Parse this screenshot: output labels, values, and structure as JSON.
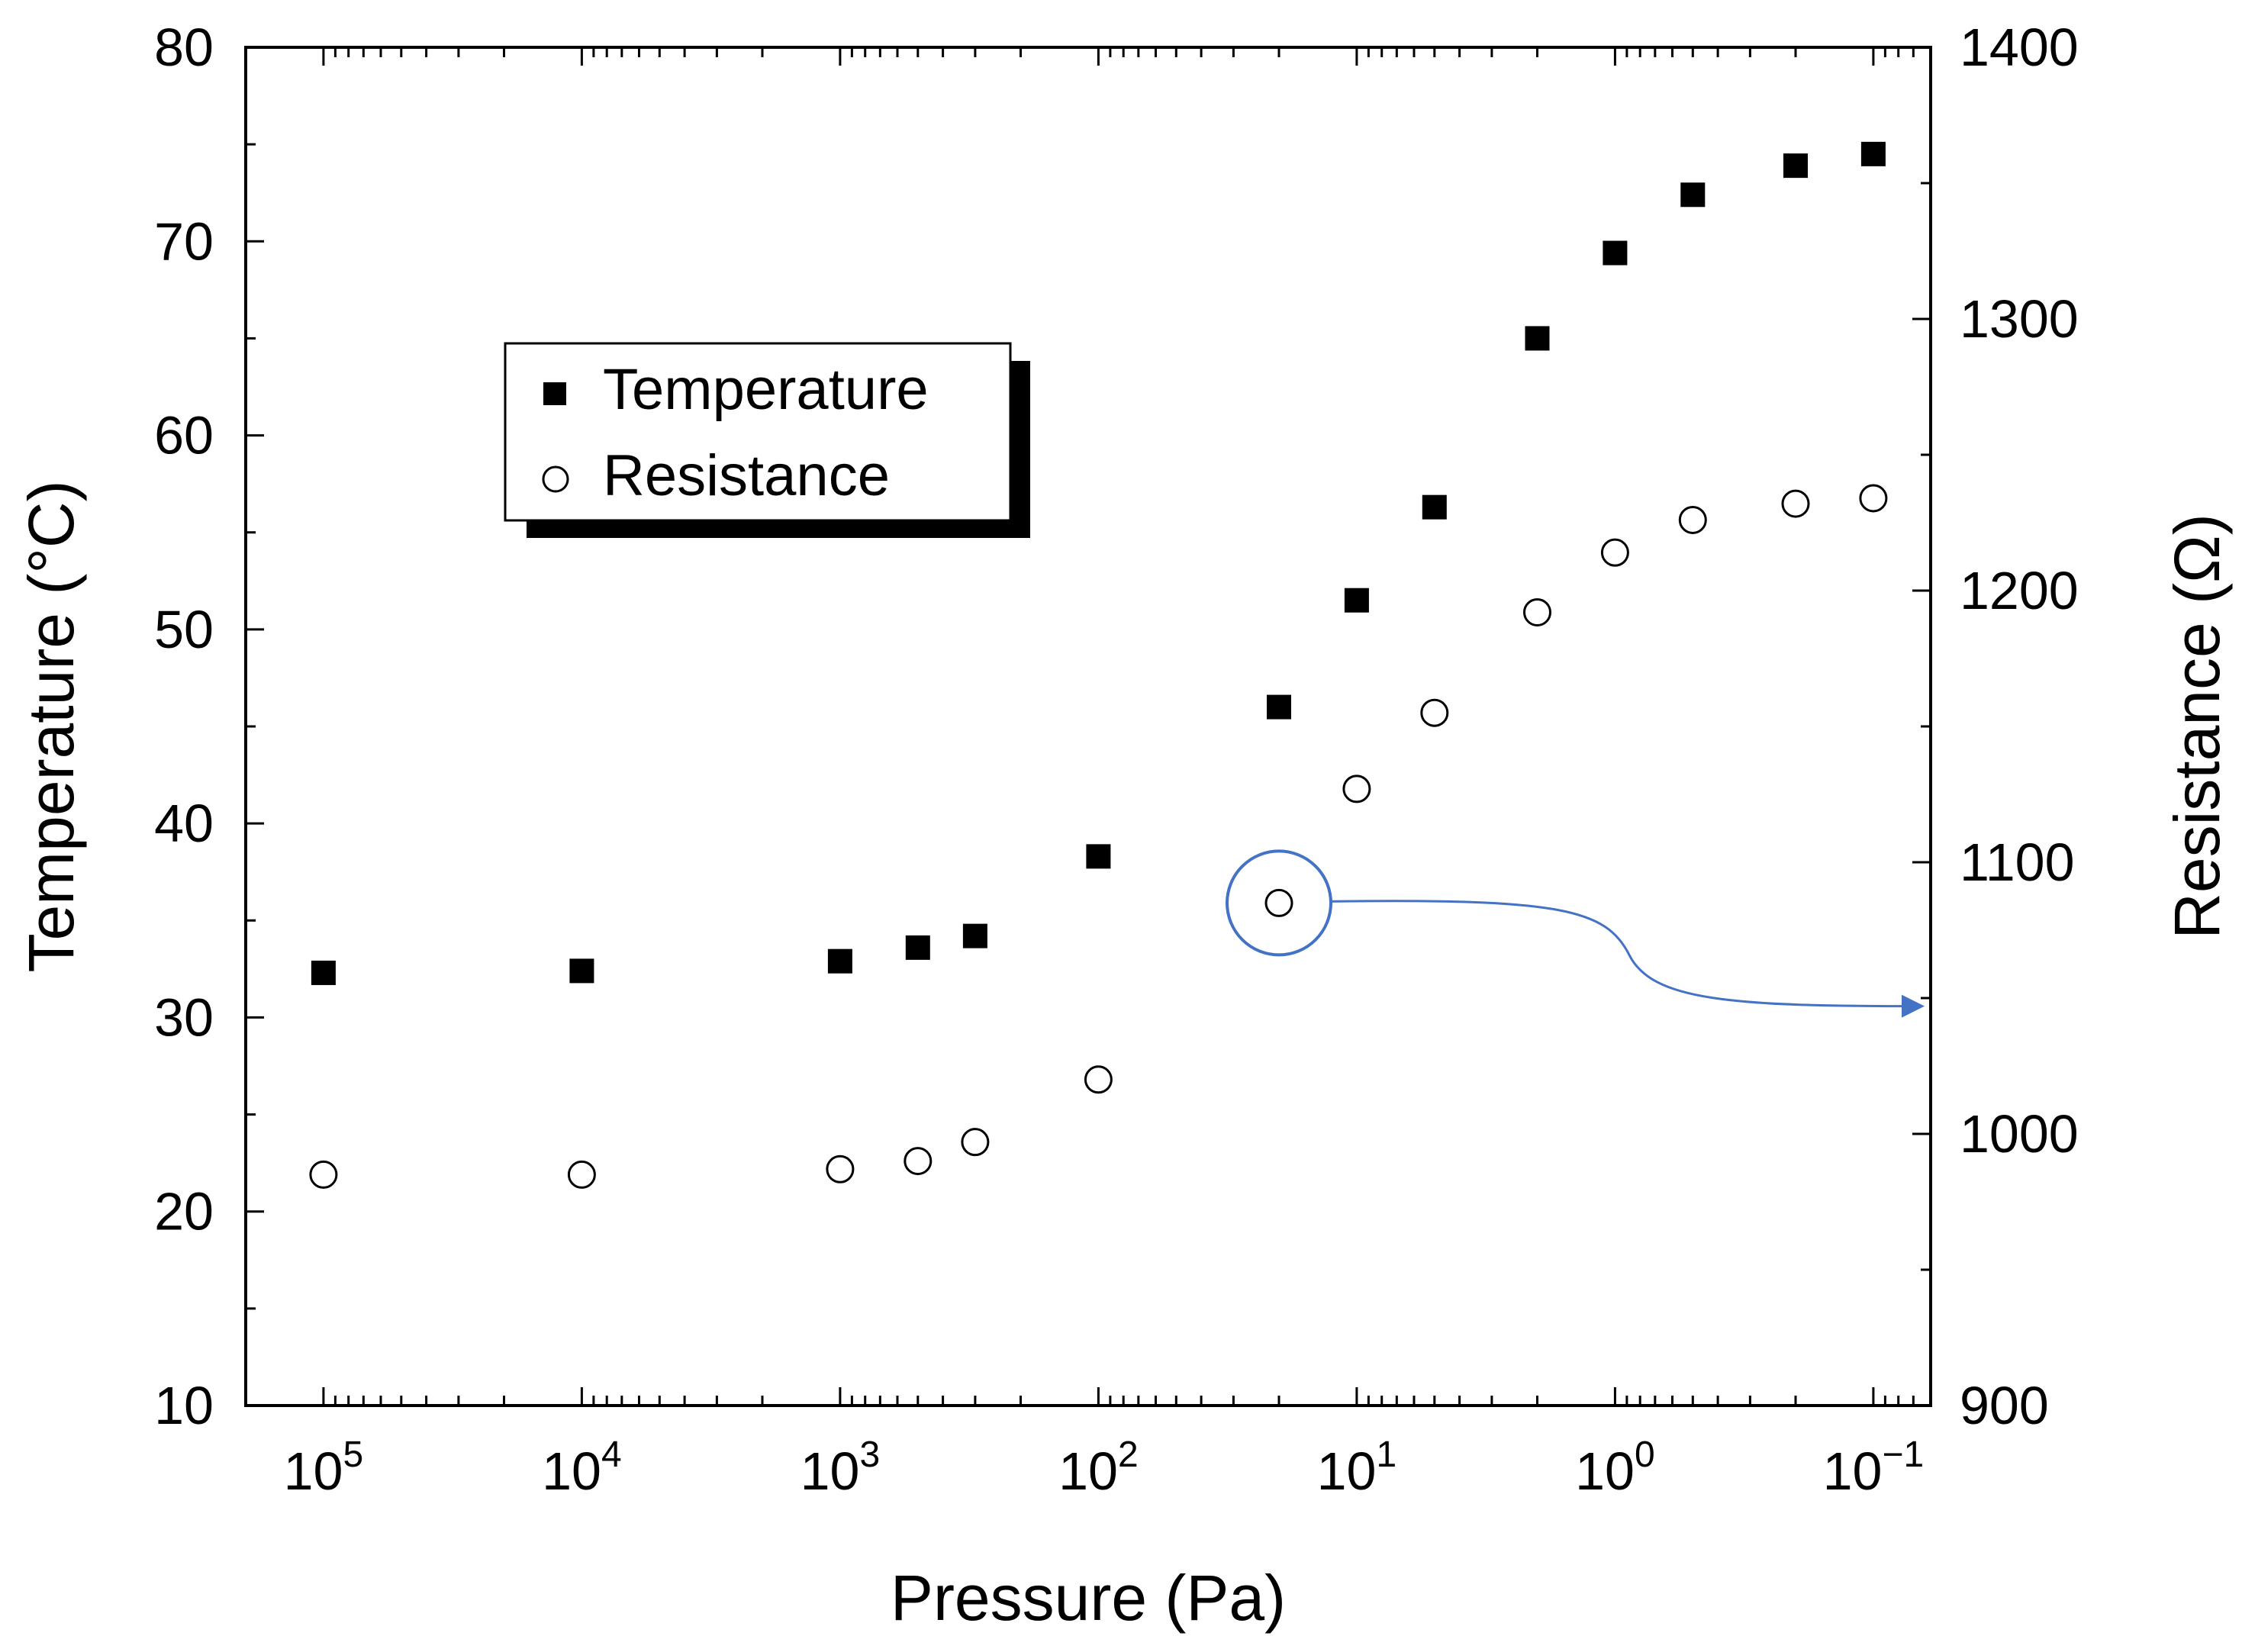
{
  "chart_data": {
    "type": "scatter",
    "title": "",
    "xlabel": "Pressure (Pa)",
    "ylabel_left": "Temperature (°C)",
    "ylabel_right": "Resistance (Ω)",
    "x_scale": "log",
    "x_reversed": true,
    "xlim": [
      200000,
      0.06
    ],
    "ylim_left": [
      10,
      80
    ],
    "ylim_right": [
      900,
      1400
    ],
    "x_ticks": [
      {
        "value": 100000,
        "base": "10",
        "exp": "5"
      },
      {
        "value": 10000,
        "base": "10",
        "exp": "4"
      },
      {
        "value": 1000,
        "base": "10",
        "exp": "3"
      },
      {
        "value": 100,
        "base": "10",
        "exp": "2"
      },
      {
        "value": 10,
        "base": "10",
        "exp": "1"
      },
      {
        "value": 1,
        "base": "10",
        "exp": "0"
      },
      {
        "value": 0.1,
        "base": "10",
        "exp": "−1"
      }
    ],
    "y_ticks_left": [
      "10",
      "20",
      "30",
      "40",
      "50",
      "60",
      "70",
      "80"
    ],
    "y_ticks_right": [
      "900",
      "1000",
      "1100",
      "1200",
      "1300",
      "1400"
    ],
    "legend": {
      "position": "upper-left",
      "entries": [
        "Temperature",
        "Resistance"
      ]
    },
    "series": [
      {
        "name": "Temperature",
        "axis": "left",
        "marker": "filled-square",
        "x": [
          100000,
          10000,
          1000,
          500,
          300,
          100,
          20,
          10,
          5,
          2,
          1,
          0.5,
          0.2,
          0.1
        ],
        "y": [
          32.3,
          32.4,
          32.9,
          33.6,
          34.2,
          38.3,
          46.0,
          51.5,
          56.3,
          65.0,
          69.4,
          72.4,
          73.9,
          74.5
        ]
      },
      {
        "name": "Resistance",
        "axis": "right",
        "marker": "open-circle",
        "x": [
          100000,
          10000,
          1000,
          500,
          300,
          100,
          20,
          10,
          5,
          2,
          1,
          0.5,
          0.2,
          0.1
        ],
        "y": [
          985,
          985,
          987,
          990,
          997,
          1020,
          1085,
          1127,
          1155,
          1192,
          1214,
          1226,
          1232,
          1234
        ]
      }
    ],
    "annotation": {
      "highlighted_point_index": 6,
      "series": "Resistance",
      "arrow_direction": "to right axis",
      "color": "#4472C4"
    }
  }
}
